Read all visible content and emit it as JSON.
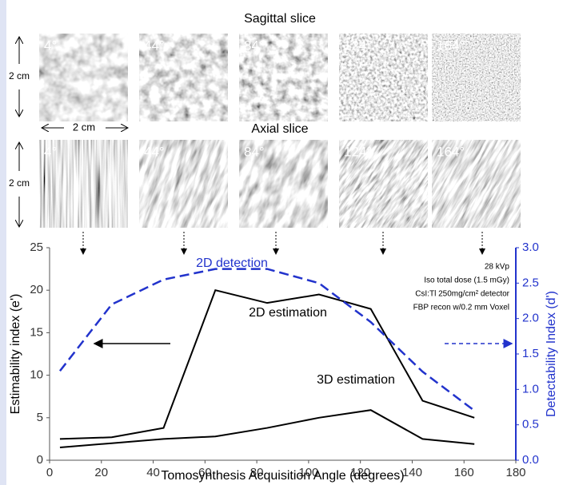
{
  "panels": {
    "sagittal_title": "Sagittal slice",
    "axial_title": "Axial slice",
    "angles": [
      "4°",
      "44°",
      "84°",
      "124°",
      "164°"
    ],
    "scale_vertical": "2 cm",
    "scale_horizontal": "2 cm"
  },
  "chart_data": {
    "type": "line",
    "xlabel": "Tomosynthesis Acquisition Angle (degrees)",
    "ylabel": "Estimability index (e')",
    "y2label": "Detectability Index (d')",
    "x": [
      4,
      24,
      44,
      64,
      84,
      104,
      124,
      144,
      164
    ],
    "series": [
      {
        "name": "2D estimation",
        "color": "#000000",
        "values": [
          2.5,
          2.7,
          3.8,
          20,
          18.5,
          19.5,
          17.8,
          7,
          5
        ]
      },
      {
        "name": "3D estimation",
        "color": "#000000",
        "values": [
          1.5,
          2.0,
          2.5,
          2.8,
          3.8,
          5.0,
          5.9,
          2.5,
          1.9
        ]
      },
      {
        "name": "2D detection",
        "color": "#2233cc",
        "axis": "y2",
        "values": [
          1.26,
          2.2,
          2.55,
          2.7,
          2.7,
          2.5,
          1.95,
          1.25,
          0.7
        ]
      }
    ],
    "annotation": [
      "28 kVp",
      "Iso total dose (1.5 mGy)",
      "CsI:Tl 250mg/cm² detector",
      "FBP recon w/0.2 mm Voxel"
    ],
    "xlim": [
      0,
      180
    ],
    "xticks": [
      0,
      20,
      40,
      60,
      80,
      100,
      120,
      140,
      160,
      180
    ],
    "ylim": [
      0,
      25
    ],
    "yticks": [
      0,
      5,
      10,
      15,
      20,
      25
    ],
    "y2lim": [
      0,
      3
    ],
    "y2ticks": [
      {
        "value": 0,
        "label": "0.0"
      },
      {
        "value": 0.5,
        "label": "0.5"
      },
      {
        "value": 1,
        "label": "1.0"
      },
      {
        "value": 1.5,
        "label": "1.5"
      },
      {
        "value": 2,
        "label": "2.0"
      },
      {
        "value": 2.5,
        "label": "2.5"
      },
      {
        "value": 3,
        "label": "3.0"
      }
    ]
  }
}
